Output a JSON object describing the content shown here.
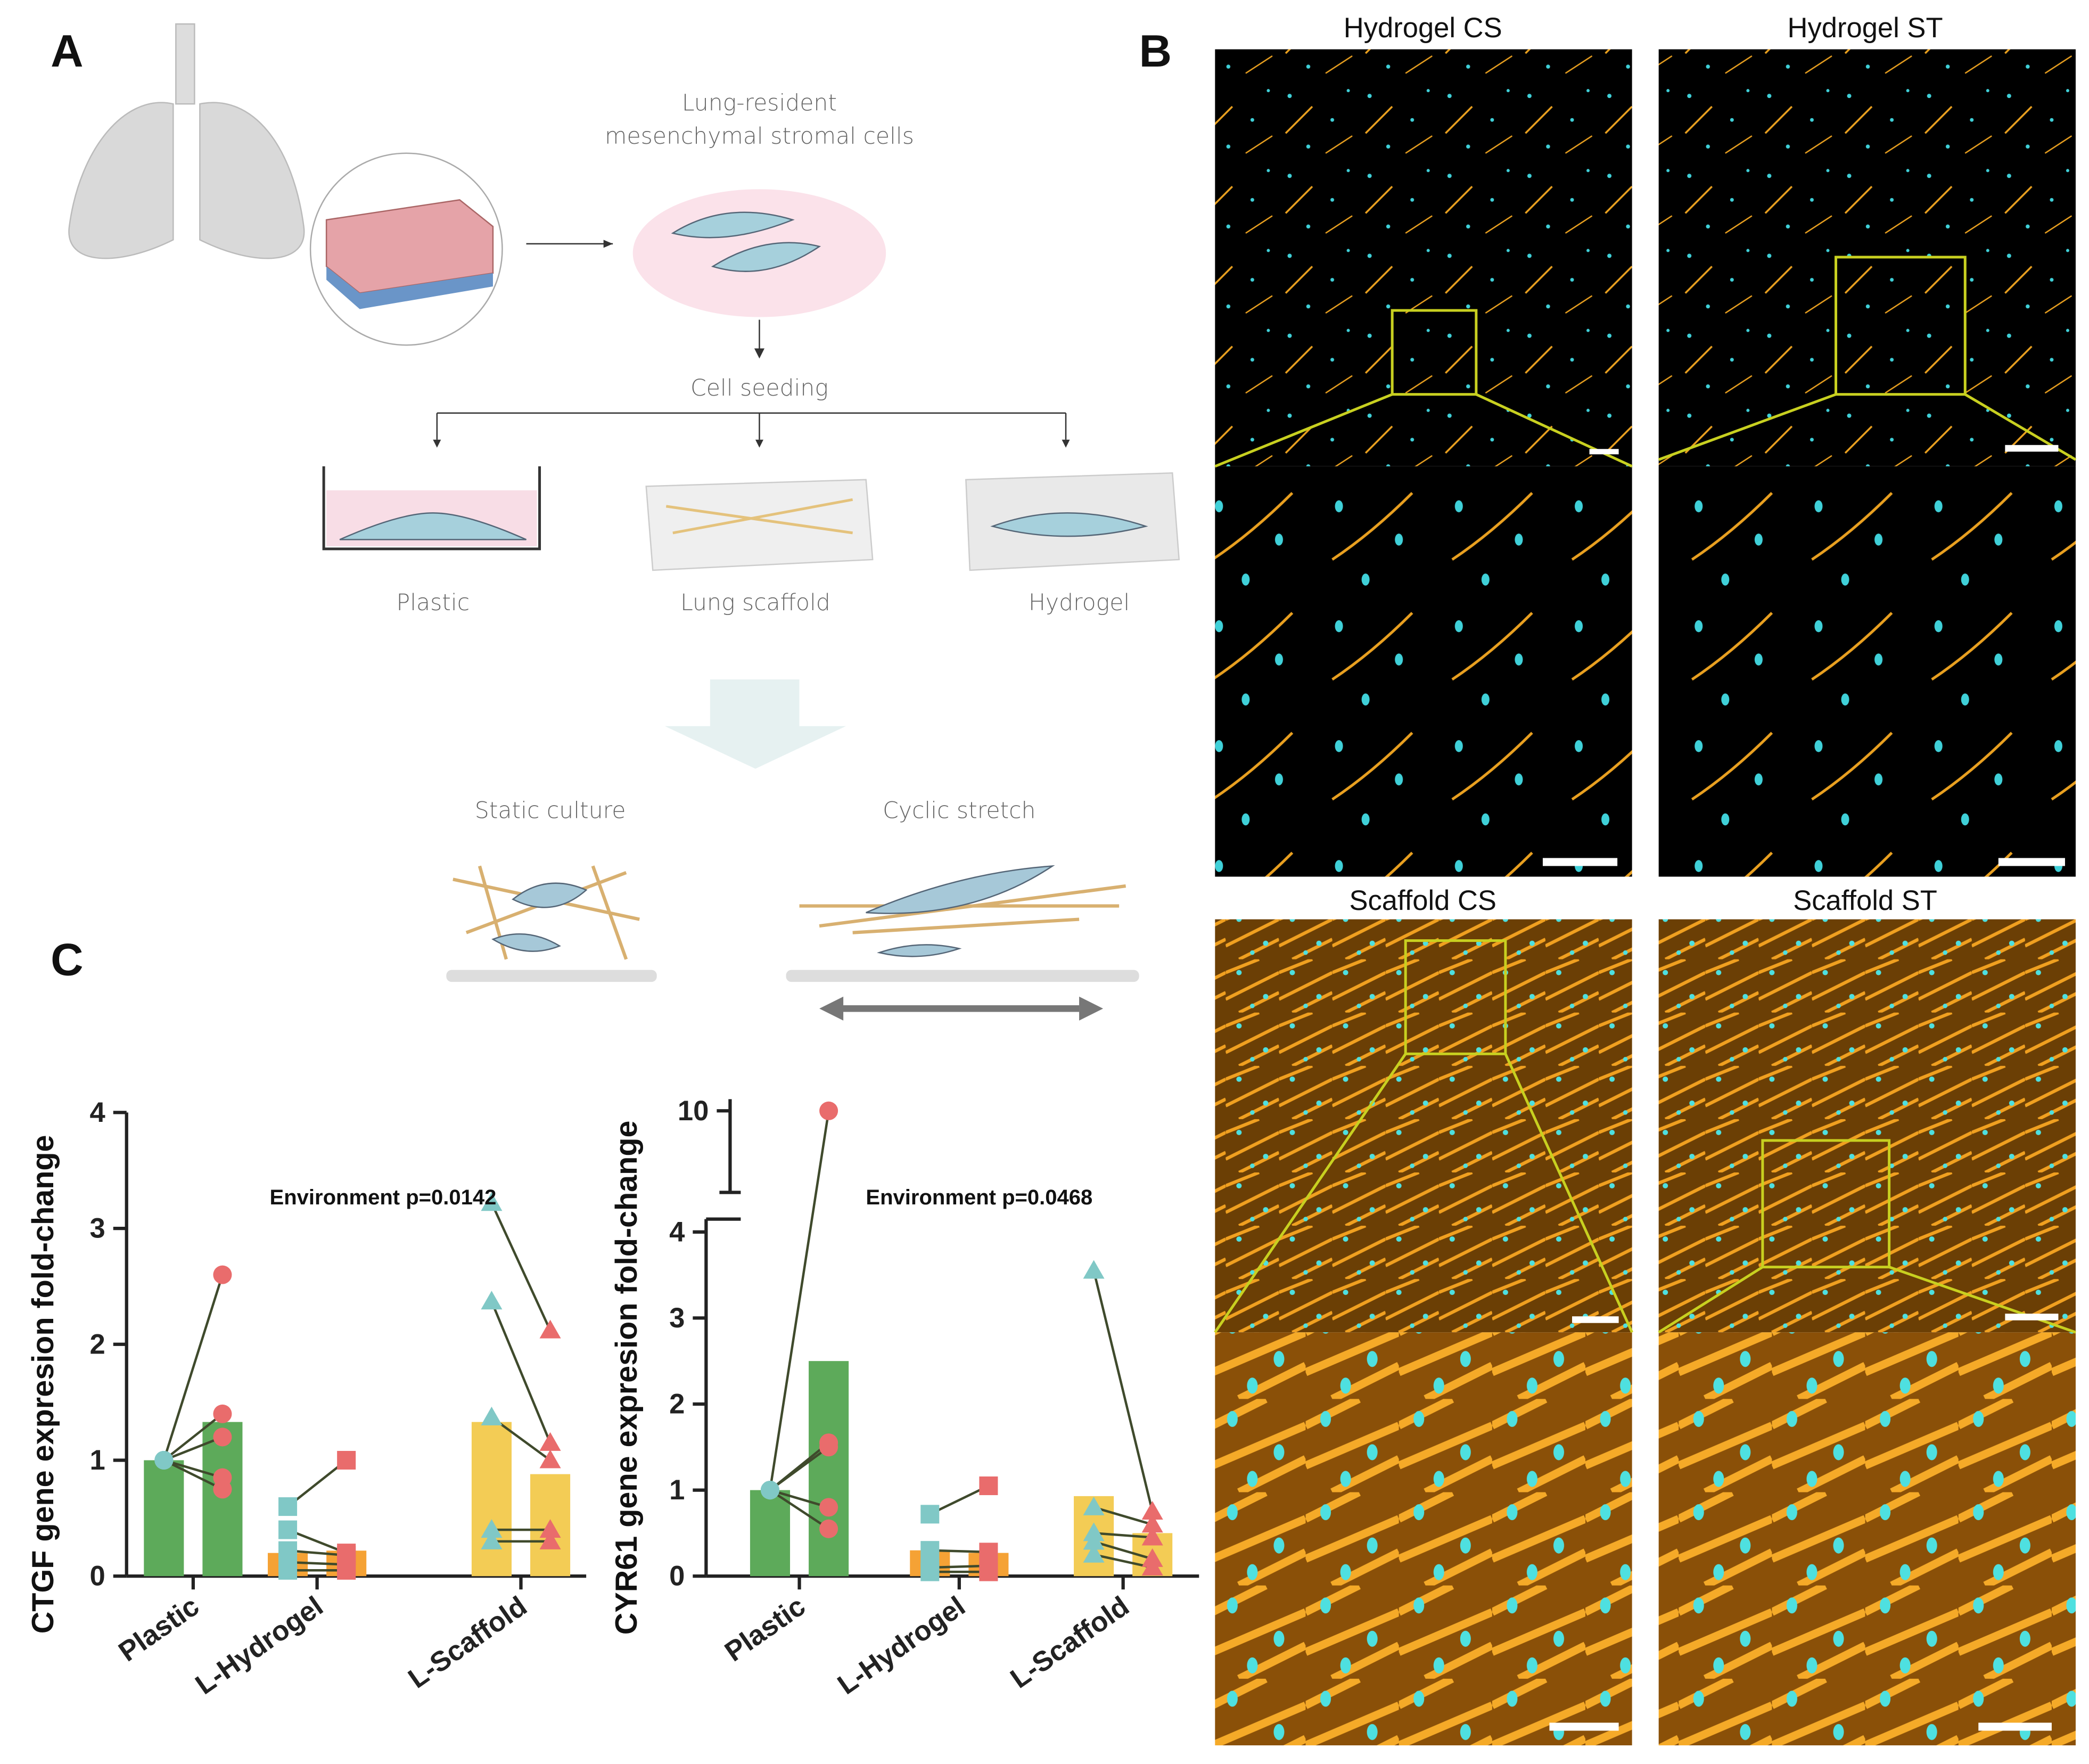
{
  "panel_labels": [
    "A",
    "B",
    "C"
  ],
  "diagram": {
    "source_label": [
      "Lung-resident",
      "mesenchymal stromal cells"
    ],
    "step": "Cell seeding",
    "substrates": [
      "Plastic",
      "Lung scaffold",
      "Hydrogel"
    ],
    "conditions": [
      "Static culture",
      "Cyclic stretch"
    ]
  },
  "images": {
    "titles": [
      "Hydrogel CS",
      "Hydrogel ST",
      "Scaffold CS",
      "Scaffold ST"
    ]
  },
  "chart_data": [
    {
      "type": "bar",
      "ylabel": "CTGF gene expresion fold-change",
      "annotation": "Environment p=0.0142",
      "categories": [
        "Plastic",
        "L-Hydrogel",
        "L-Scaffold"
      ],
      "category_colors": [
        "#5daa5a",
        "#f5a235",
        "#f3cc55"
      ],
      "markers": [
        "circle",
        "square",
        "triangle"
      ],
      "line_color": "#3f4a2c",
      "ylim": [
        0,
        4
      ],
      "yticks": [
        0,
        1,
        2,
        3,
        4
      ],
      "series": [
        {
          "color": "#80c8c6",
          "values": [
            1.0,
            0.2,
            1.33
          ],
          "points": [
            [
              1,
              1,
              1,
              1,
              1
            ],
            [
              0.6,
              0.4,
              0.22,
              0.12,
              0.05
            ],
            [
              3.22,
              2.37,
              1.37,
              0.4,
              0.3
            ]
          ]
        },
        {
          "color": "#e96c6c",
          "values": [
            1.33,
            0.22,
            0.88
          ],
          "points": [
            [
              2.6,
              1.4,
              1.2,
              0.85,
              0.75
            ],
            [
              1.0,
              0.2,
              0.18,
              0.1,
              0.05
            ],
            [
              2.12,
              1.15,
              1.0,
              0.4,
              0.3
            ]
          ]
        }
      ]
    },
    {
      "type": "bar",
      "ylabel": "CYR61 gene expresion fold-change",
      "annotation": "Environment p=0.0468",
      "categories": [
        "Plastic",
        "L-Hydrogel",
        "L-Scaffold"
      ],
      "category_colors": [
        "#5daa5a",
        "#f5a235",
        "#f3cc55"
      ],
      "markers": [
        "circle",
        "square",
        "triangle"
      ],
      "line_color": "#3f4a2c",
      "ylim": [
        0,
        10.1
      ],
      "ybreak": [
        4.15,
        9.3
      ],
      "yticks": [
        0,
        1,
        2,
        3,
        4,
        10
      ],
      "series": [
        {
          "color": "#80c8c6",
          "values": [
            1.0,
            0.3,
            0.93
          ],
          "points": [
            [
              1,
              1,
              1,
              1,
              1
            ],
            [
              0.72,
              0.3,
              0.1,
              0.05
            ],
            [
              3.55,
              0.8,
              0.5,
              0.4,
              0.25
            ]
          ]
        },
        {
          "color": "#e96c6c",
          "values": [
            2.5,
            0.27,
            0.5
          ],
          "points": [
            [
              10,
              1.55,
              1.5,
              0.8,
              0.55
            ],
            [
              1.05,
              0.28,
              0.12,
              0.05
            ],
            [
              0.75,
              0.6,
              0.45,
              0.2,
              0.1
            ]
          ]
        }
      ]
    }
  ]
}
